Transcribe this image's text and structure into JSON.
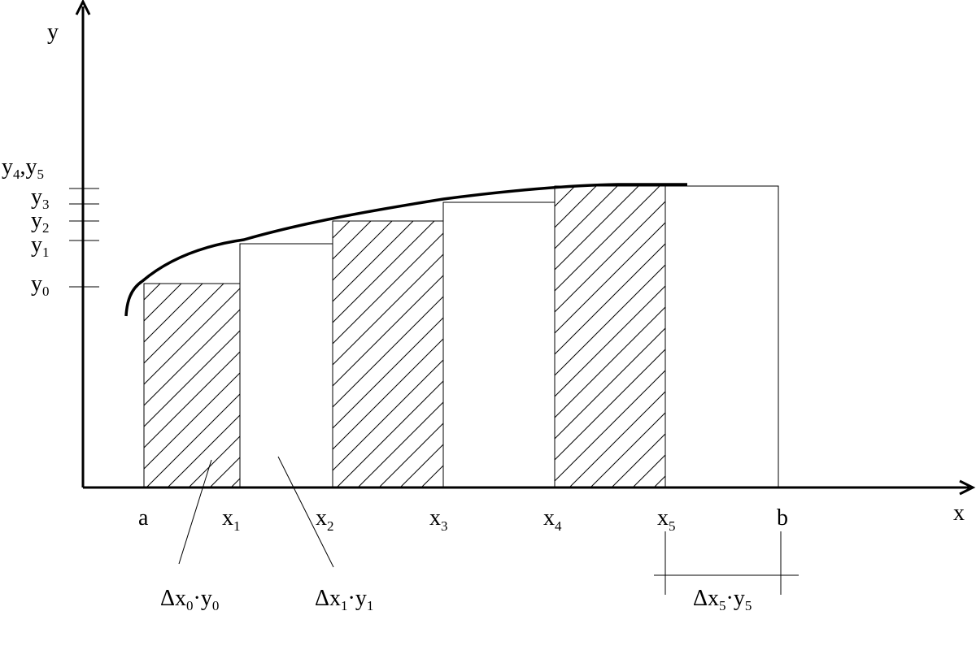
{
  "axes": {
    "x_label": "x",
    "y_label": "y"
  },
  "x_ticks": [
    {
      "base": "a",
      "sub": ""
    },
    {
      "base": "x",
      "sub": "1"
    },
    {
      "base": "x",
      "sub": "2"
    },
    {
      "base": "x",
      "sub": "3"
    },
    {
      "base": "x",
      "sub": "4"
    },
    {
      "base": "x",
      "sub": "5"
    },
    {
      "base": "b",
      "sub": ""
    }
  ],
  "y_ticks": [
    {
      "base": "y",
      "sub": "0"
    },
    {
      "base": "y",
      "sub": "1"
    },
    {
      "base": "y",
      "sub": "2"
    },
    {
      "base": "y",
      "sub": "3"
    },
    {
      "base": "y",
      "sub": "4",
      "base2": "y",
      "sub2": "5",
      "sep": ","
    }
  ],
  "annotations": [
    {
      "pre": "Δx",
      "sub1": "0",
      "mid": "·y",
      "sub2": "0"
    },
    {
      "pre": "Δx",
      "sub1": "1",
      "mid": "·y",
      "sub2": "1"
    },
    {
      "pre": "Δx",
      "sub1": "5",
      "mid": "·y",
      "sub2": "5"
    }
  ],
  "rectangles": [
    {
      "hatched": true
    },
    {
      "hatched": false
    },
    {
      "hatched": true
    },
    {
      "hatched": false
    },
    {
      "hatched": true
    },
    {
      "hatched": false
    }
  ]
}
